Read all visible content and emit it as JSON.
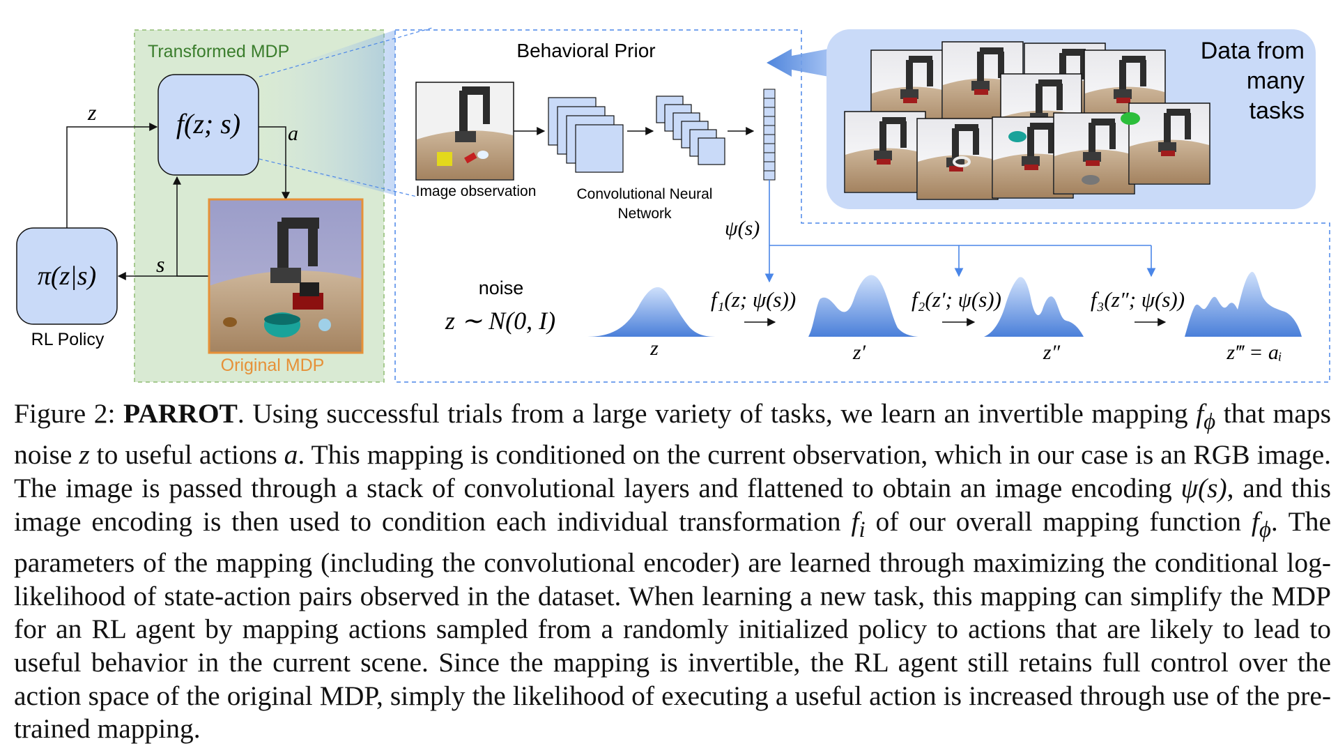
{
  "figure": {
    "transformed_mdp": "Transformed MDP",
    "original_mdp": "Original MDP",
    "rl_policy": "RL Policy",
    "policy_expr": "π(z|s)",
    "flow_expr": "f(z; s)",
    "var_z": "z",
    "var_a": "a",
    "var_s": "s",
    "behavioral_prior": "Behavioral Prior",
    "image_observation": "Image observation",
    "cnn_line1": "Convolutional Neural",
    "cnn_line2": "Network",
    "psi": "ψ(s)",
    "data_line1": "Data from",
    "data_line2": "many",
    "data_line3": "tasks",
    "noise_label": "noise",
    "noise_expr": "z ∼ N(0, I)",
    "f1": "f₁(z; ψ(s))",
    "f2": "f₂(z′; ψ(s))",
    "f3": "f₃(z″; ψ(s))",
    "dist_labels": [
      "z",
      "z′",
      "z″",
      "z‴ = aᵢ"
    ],
    "colors": {
      "green_bg": "#d9ead3",
      "green_border": "#8fbc72",
      "green_text": "#3a7d2c",
      "blue_box": "#c9daf8",
      "blue_dash": "#4a86e8",
      "orange": "#e69138",
      "dist_blue": "#5b8fe0"
    }
  },
  "caption": {
    "fig_label": "Figure 2:",
    "title": "PARROT",
    "s1": ". Using successful trials from a large variety of tasks, we learn an invertible mapping ",
    "f_phi": "f",
    "phi_sub": "ϕ",
    "s2": " that maps noise ",
    "z": "z",
    "s3": " to useful actions ",
    "a": "a",
    "s4": ". This mapping is conditioned on the current observation, which in our case is an RGB image. The image is passed through a stack of convolutional layers and flattened to obtain an image encoding ",
    "psi_s": "ψ(s)",
    "s5": ", and this image encoding is then used to condition each individual transformation ",
    "f_i": "f",
    "i_sub": "i",
    "s6": " of our overall mapping function ",
    "s7": ". The parameters of the mapping (including the convolutional encoder) are learned through maximizing the conditional log-likelihood of state-action pairs observed in the dataset. When learning a new task, this mapping can simplify the MDP for an RL agent by mapping actions sampled from a randomly initialized policy to actions that are likely to lead to useful behavior in the current scene. Since the mapping is invertible, the RL agent still retains full control over the action space of the original MDP, simply the likelihood of executing a useful action is increased through use of the pre-trained mapping."
  }
}
